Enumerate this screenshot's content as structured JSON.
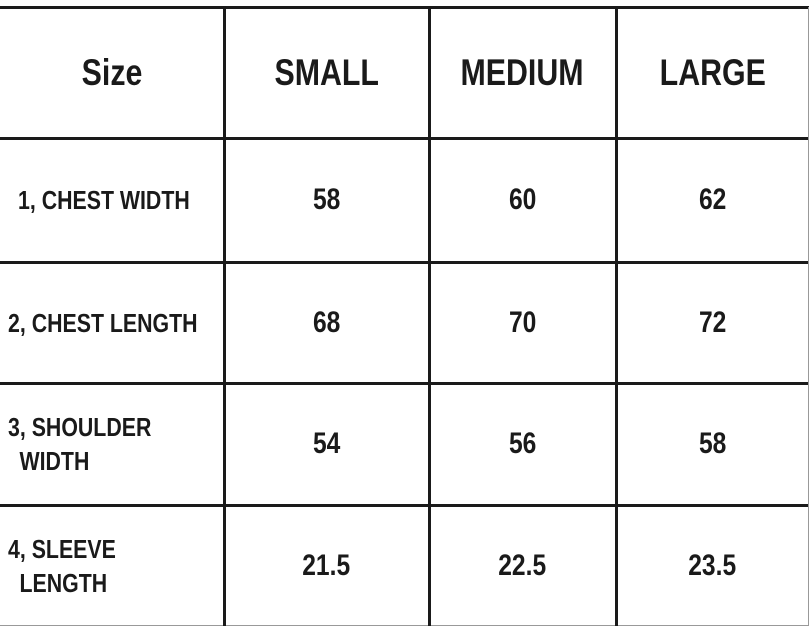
{
  "table": {
    "headers": [
      "Size",
      "SMALL",
      "MEDIUM",
      "LARGE"
    ],
    "rows": [
      {
        "label": "1, CHEST WIDTH",
        "label_line2": "",
        "values": [
          "58",
          "60",
          "62"
        ]
      },
      {
        "label": "2, CHEST LENGTH",
        "label_line2": "",
        "values": [
          "68",
          "70",
          "72"
        ]
      },
      {
        "label": "3, SHOULDER",
        "label_line2": "WIDTH",
        "values": [
          "54",
          "56",
          "58"
        ]
      },
      {
        "label": "4, SLEEVE",
        "label_line2": "LENGTH",
        "values": [
          "21.5",
          "22.5",
          "23.5"
        ]
      }
    ]
  }
}
